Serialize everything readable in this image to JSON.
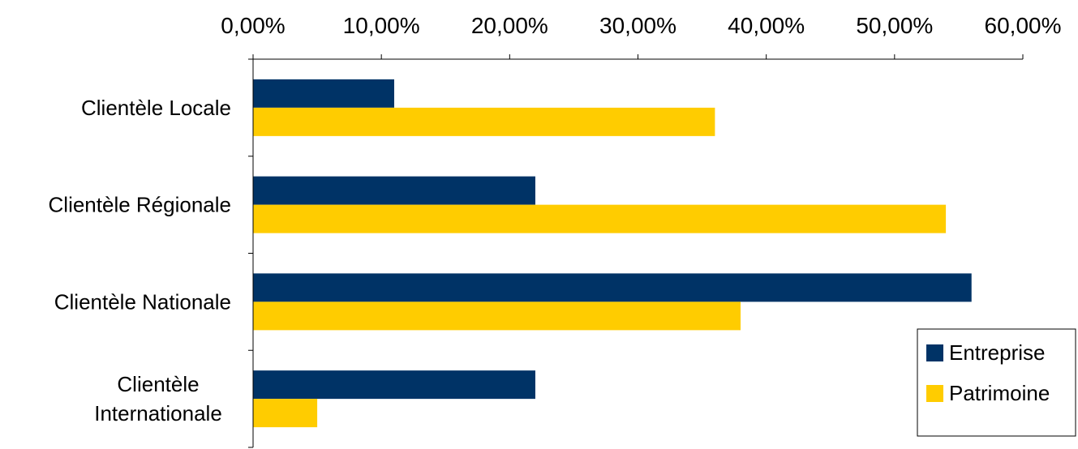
{
  "chart_data": {
    "type": "bar",
    "orientation": "horizontal",
    "categories": [
      [
        "Clientèle Locale"
      ],
      [
        "Clientèle Régionale"
      ],
      [
        "Clientèle Nationale"
      ],
      [
        "Clientèle",
        "Internationale"
      ]
    ],
    "series": [
      {
        "name": "Entreprise",
        "color": "#003366",
        "values": [
          11.0,
          22.0,
          56.0,
          22.0
        ]
      },
      {
        "name": "Patrimoine",
        "color": "#FFCC00",
        "values": [
          36.0,
          54.0,
          38.0,
          5.0
        ]
      }
    ],
    "xlim": [
      0,
      60
    ],
    "x_ticks": [
      "0,00%",
      "10,00%",
      "20,00%",
      "30,00%",
      "40,00%",
      "50,00%",
      "60,00%"
    ],
    "x_axis_position": "top",
    "grid": false,
    "legend_position": "right",
    "title": "",
    "xlabel": "",
    "ylabel": ""
  }
}
